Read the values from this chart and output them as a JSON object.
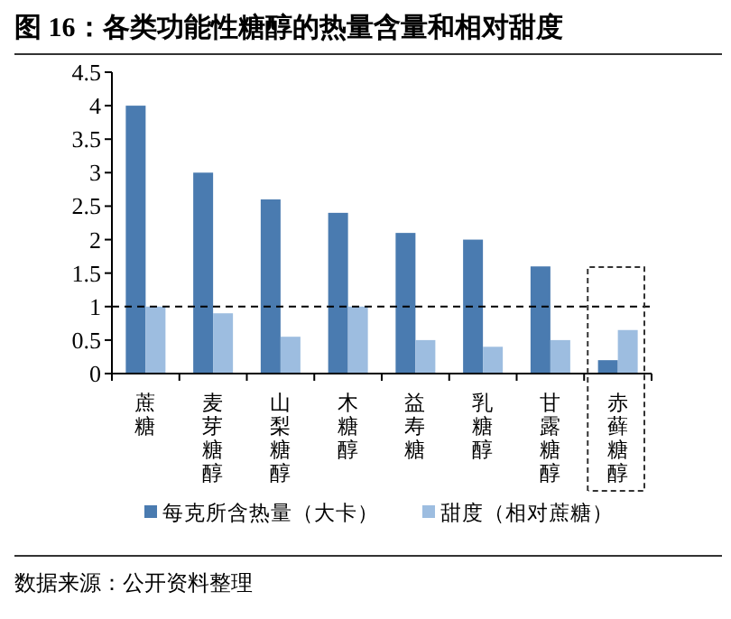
{
  "chart_data": {
    "type": "bar",
    "title": "图 16：各类功能性糖醇的热量含量和相对甜度",
    "categories": [
      "蔗糖",
      "麦芽糖醇",
      "山梨糖醇",
      "木糖醇",
      "益寿糖",
      "乳糖醇",
      "甘露糖醇",
      "赤藓糖醇"
    ],
    "series": [
      {
        "name": "每克所含热量（大卡）",
        "color": "#4a7bb0",
        "values": [
          4,
          3,
          2.6,
          2.4,
          2.1,
          2,
          1.6,
          0.2
        ]
      },
      {
        "name": "甜度（相对蔗糖）",
        "color": "#9dbde0",
        "values": [
          1,
          0.9,
          0.55,
          1,
          0.5,
          0.4,
          0.5,
          0.65
        ]
      }
    ],
    "ylim": [
      0,
      4.5
    ],
    "yticks": [
      0,
      0.5,
      1,
      1.5,
      2,
      2.5,
      3,
      3.5,
      4,
      4.5
    ],
    "ref_lines": [
      {
        "axis": "y",
        "value": 1,
        "color": "#000000",
        "line_style": "dashed"
      }
    ],
    "grid": false,
    "legend": "bottom",
    "annotations": [
      "数据来源：公开资料整理"
    ]
  }
}
